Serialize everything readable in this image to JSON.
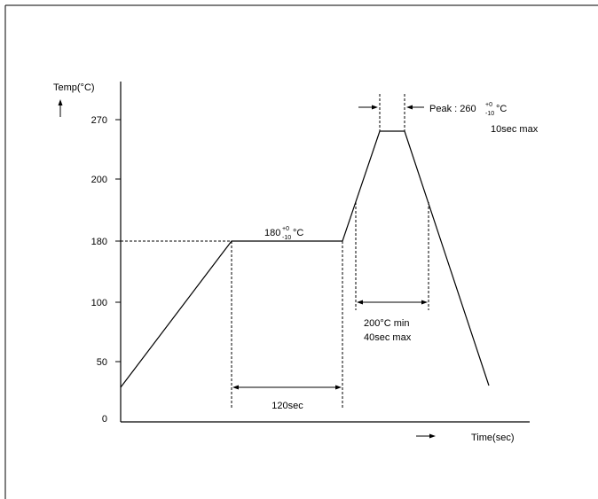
{
  "chart_data": {
    "type": "line",
    "ylabel": "Temp(°C)",
    "xlabel": "Time(sec)",
    "ytick_labels": [
      "0",
      "50",
      "100",
      "180",
      "200",
      "270"
    ],
    "annotations": {
      "soak_temp_main": "180",
      "soak_temp_sup": "+0",
      "soak_temp_sub": "-10",
      "soak_temp_unit": "°C",
      "soak_time": "120sec",
      "reflow_line1": "200°C  min",
      "reflow_line2": "40sec max",
      "peak_prefix": "Peak : 260",
      "peak_sup": "+0",
      "peak_sub": "-10",
      "peak_unit": "°C",
      "peak_time": "10sec  max"
    },
    "profile_points": [
      {
        "time": 0,
        "temp": 30
      },
      {
        "time": 120,
        "temp": 180
      },
      {
        "time": 240,
        "temp": 180
      },
      {
        "time": 280,
        "temp": 260
      },
      {
        "time": 290,
        "temp": 260
      },
      {
        "time": 400,
        "temp": 30
      }
    ]
  }
}
